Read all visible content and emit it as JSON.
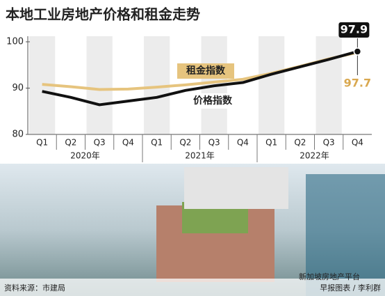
{
  "chart_data": {
    "type": "line",
    "title": "本地工业房地产价格和租金走势",
    "categories": [
      "Q1",
      "Q2",
      "Q3",
      "Q4",
      "Q1",
      "Q2",
      "Q3",
      "Q4",
      "Q1",
      "Q2",
      "Q3",
      "Q4"
    ],
    "year_labels": [
      "2020年",
      "2021年",
      "2022年"
    ],
    "series": [
      {
        "name": "价格指数",
        "color": "#111111",
        "values": [
          89.3,
          88.0,
          86.4,
          87.2,
          88.0,
          89.5,
          90.5,
          91.2,
          93.0,
          94.6,
          96.2,
          97.9
        ]
      },
      {
        "name": "租金指数",
        "color": "#e6c47e",
        "values": [
          90.8,
          90.3,
          89.7,
          89.8,
          90.2,
          90.7,
          91.3,
          91.9,
          93.2,
          94.7,
          96.3,
          97.7
        ]
      }
    ],
    "ylim": [
      80,
      100
    ],
    "yticks": [
      80,
      90,
      100
    ],
    "source": "资料来源：市建局",
    "credit": "早报图表 / 李利群",
    "watermark": "新加坡房地产平台"
  }
}
